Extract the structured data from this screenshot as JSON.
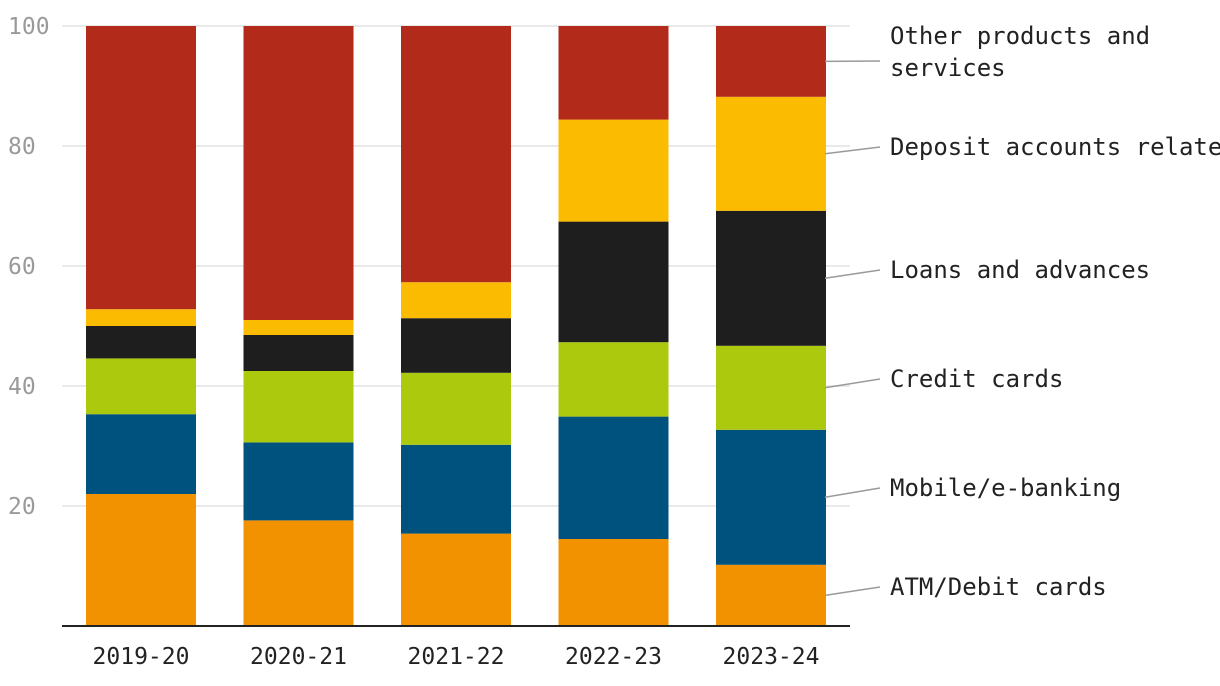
{
  "chart_data": {
    "type": "bar",
    "stacked": true,
    "categories": [
      "2019-20",
      "2020-21",
      "2021-22",
      "2022-23",
      "2023-24"
    ],
    "series": [
      {
        "name": "ATM/Debit cards",
        "color": "#f39200",
        "values": [
          22,
          17.6,
          15.4,
          14.5,
          10.2
        ]
      },
      {
        "name": "Mobile/e-banking",
        "color": "#00527e",
        "values": [
          13.3,
          13.0,
          14.8,
          20.4,
          22.5
        ]
      },
      {
        "name": "Credit cards",
        "color": "#acc90d",
        "values": [
          9.3,
          11.9,
          12.0,
          12.4,
          14.0
        ]
      },
      {
        "name": "Loans and advances",
        "color": "#1e1e1e",
        "values": [
          5.4,
          6.0,
          9.1,
          20.1,
          22.5
        ]
      },
      {
        "name": "Deposit accounts related",
        "color": "#fbbb00",
        "values": [
          2.8,
          2.5,
          6.0,
          17.0,
          19.0
        ]
      },
      {
        "name": "Other products and services",
        "color": "#b22a19",
        "values": [
          47.2,
          49.0,
          42.7,
          15.6,
          11.8
        ]
      }
    ],
    "ylim": [
      0,
      100
    ],
    "yticks": [
      "20",
      "40",
      "60",
      "80",
      "100"
    ],
    "grid": true,
    "legend_placement": "right"
  }
}
